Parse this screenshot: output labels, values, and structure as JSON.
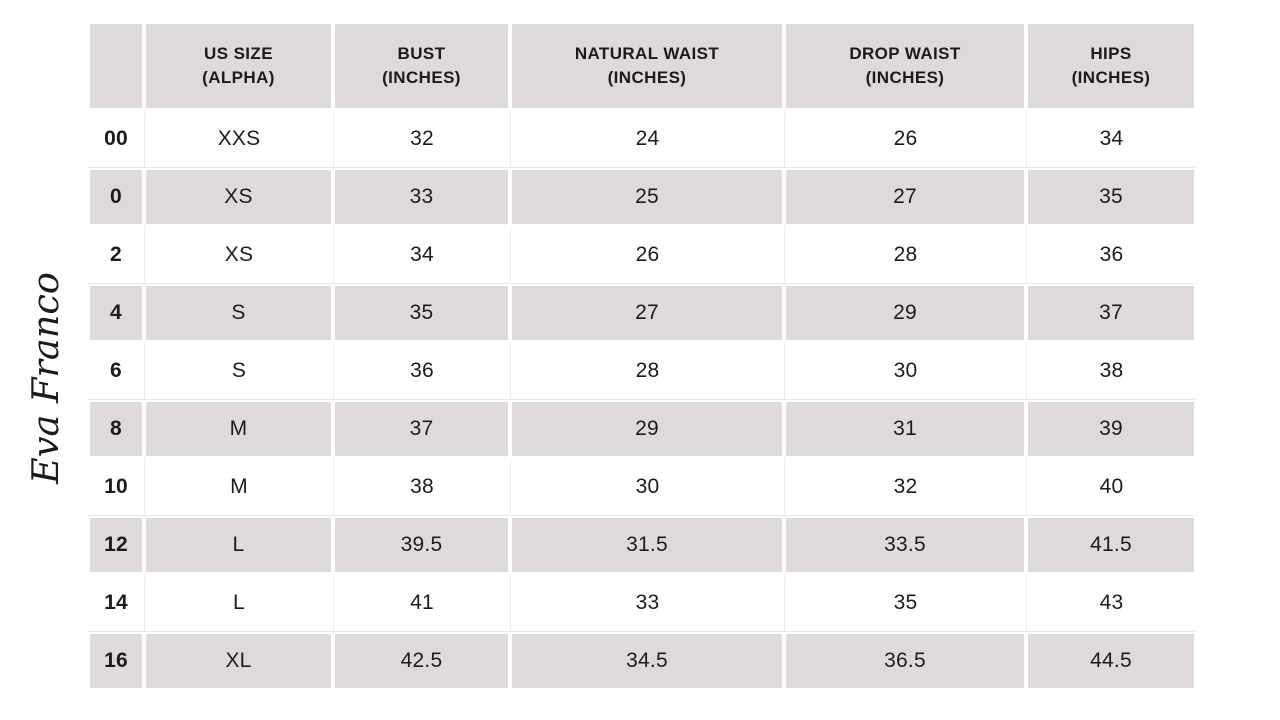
{
  "brand": {
    "logo_text": "Eva Franco"
  },
  "colors": {
    "stripe": "#dedad9",
    "text": "#1c1c1c",
    "background": "#ffffff"
  },
  "chart_data": {
    "type": "table",
    "title": "Eva Franco size chart",
    "columns": [
      {
        "line1": "",
        "line2": ""
      },
      {
        "line1": "US SIZE",
        "line2": "(ALPHA)"
      },
      {
        "line1": "BUST",
        "line2": "(INCHES)"
      },
      {
        "line1": "NATURAL WAIST",
        "line2": "(INCHES)"
      },
      {
        "line1": "DROP WAIST",
        "line2": "(INCHES)"
      },
      {
        "line1": "HIPS",
        "line2": "(INCHES)"
      }
    ],
    "rows": [
      {
        "size": "00",
        "alpha": "XXS",
        "bust": "32",
        "natural_waist": "24",
        "drop_waist": "26",
        "hips": "34"
      },
      {
        "size": "0",
        "alpha": "XS",
        "bust": "33",
        "natural_waist": "25",
        "drop_waist": "27",
        "hips": "35"
      },
      {
        "size": "2",
        "alpha": "XS",
        "bust": "34",
        "natural_waist": "26",
        "drop_waist": "28",
        "hips": "36"
      },
      {
        "size": "4",
        "alpha": "S",
        "bust": "35",
        "natural_waist": "27",
        "drop_waist": "29",
        "hips": "37"
      },
      {
        "size": "6",
        "alpha": "S",
        "bust": "36",
        "natural_waist": "28",
        "drop_waist": "30",
        "hips": "38"
      },
      {
        "size": "8",
        "alpha": "M",
        "bust": "37",
        "natural_waist": "29",
        "drop_waist": "31",
        "hips": "39"
      },
      {
        "size": "10",
        "alpha": "M",
        "bust": "38",
        "natural_waist": "30",
        "drop_waist": "32",
        "hips": "40"
      },
      {
        "size": "12",
        "alpha": "L",
        "bust": "39.5",
        "natural_waist": "31.5",
        "drop_waist": "33.5",
        "hips": "41.5"
      },
      {
        "size": "14",
        "alpha": "L",
        "bust": "41",
        "natural_waist": "33",
        "drop_waist": "35",
        "hips": "43"
      },
      {
        "size": "16",
        "alpha": "XL",
        "bust": "42.5",
        "natural_waist": "34.5",
        "drop_waist": "36.5",
        "hips": "44.5"
      }
    ]
  }
}
